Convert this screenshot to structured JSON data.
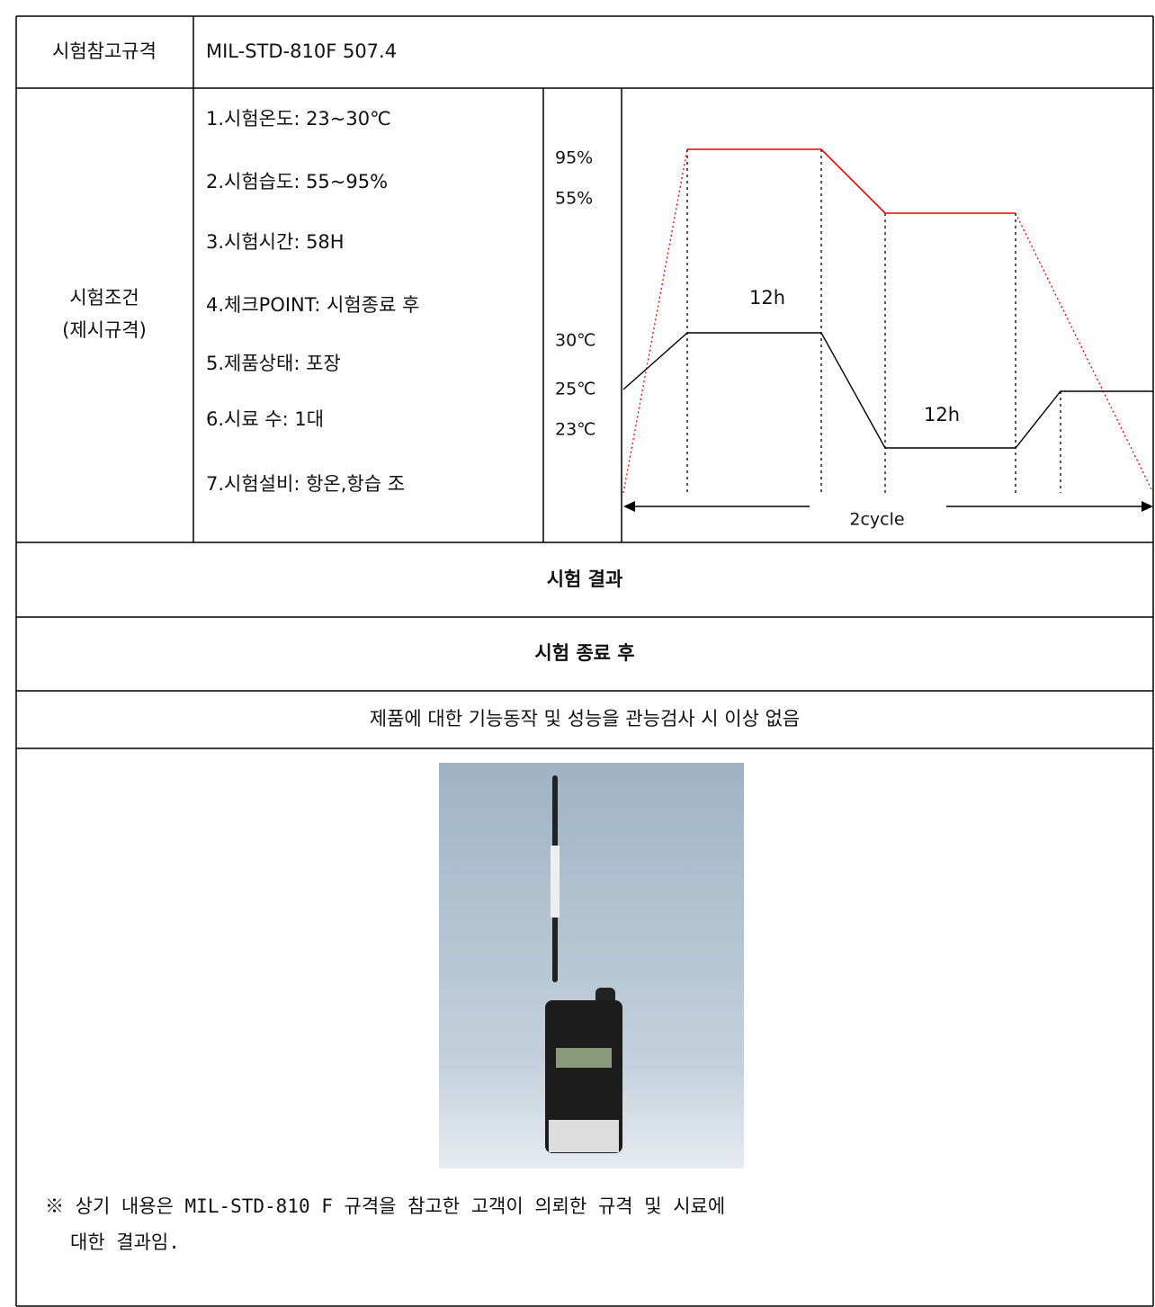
{
  "spec": {
    "label": "시험참고규격",
    "value": "MIL-STD-810F 507.4"
  },
  "conditions": {
    "label_lines": [
      "시험조건",
      "(제시규격)"
    ],
    "items": [
      "1.시험온도: 23~30℃",
      "2.시험습도: 55~95%",
      "3.시험시간: 58H",
      "4.체크POINT: 시험종료 후",
      "5.제품상태: 포장",
      "6.시료 수: 1대",
      "7.시험설비: 항온,항습 조"
    ],
    "diagram": {
      "axis_labels": [
        "95%",
        "55%",
        "30℃",
        "25℃",
        "23℃"
      ],
      "durations": [
        "12h",
        "12h"
      ],
      "span": "2cycle"
    }
  },
  "results": {
    "header": "시험 결과",
    "subheader": "시험 종료 후",
    "finding": "제품에 대한 기능동작 및 성능을 관능검사 시 이상 없음",
    "note_lines": [
      "※ 상기 내용은 MIL-STD-810 F 규격을 참고한 고객이 의뢰한 규격 및 시료에",
      "대한 결과임."
    ]
  }
}
